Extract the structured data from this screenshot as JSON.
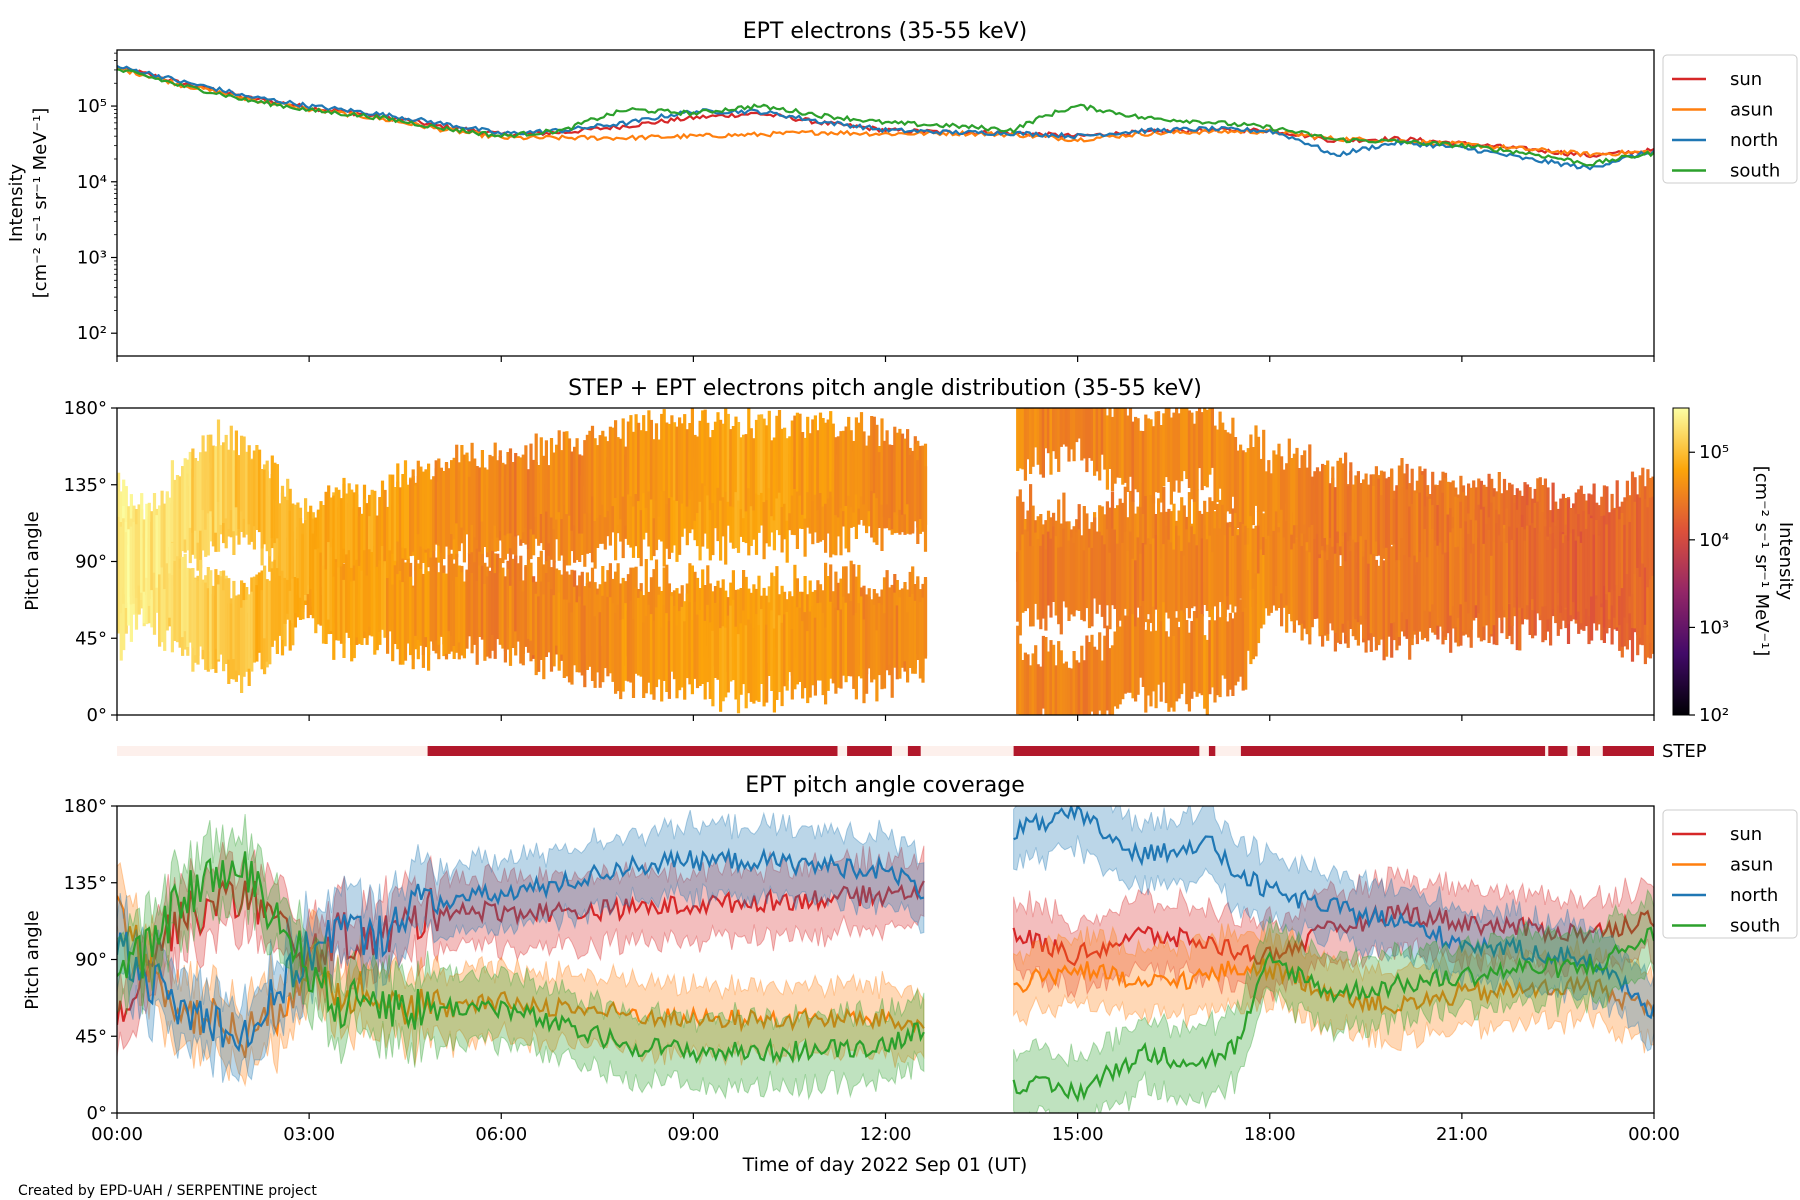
{
  "figure": {
    "footer": "Created by EPD-UAH / SERPENTINE project",
    "xlabel": "Time of day 2022 Sep 01 (UT)",
    "xticks": [
      "00:00",
      "03:00",
      "06:00",
      "09:00",
      "12:00",
      "15:00",
      "18:00",
      "21:00",
      "00:00"
    ]
  },
  "colors": {
    "sun": "#d62728",
    "asun": "#ff7f0e",
    "north": "#1f77b4",
    "south": "#2ca02c",
    "step_on": "#b2182b",
    "step_off": "#fdf0ec"
  },
  "chart_data": [
    {
      "type": "line",
      "title": "EPT electrons (35-55 keV)",
      "ylabel": "Intensity",
      "yunit": "[cm⁻² s⁻¹ sr⁻¹ MeV⁻¹]",
      "yscale": "log",
      "ylim": [
        50,
        550000
      ],
      "yticks": [
        "10²",
        "10³",
        "10⁴",
        "10⁵"
      ],
      "xlim_hours": [
        0,
        24
      ],
      "legend": "right",
      "x": [
        0,
        1,
        2,
        3,
        4,
        5,
        6,
        7,
        8,
        9,
        10,
        11,
        12,
        13,
        14,
        15,
        16,
        17,
        18,
        19,
        20,
        21,
        22,
        23,
        24
      ],
      "series": [
        {
          "name": "sun",
          "values": [
            320000,
            200000,
            130000,
            95000,
            75000,
            55000,
            42000,
            45000,
            55000,
            70000,
            80000,
            60000,
            48000,
            45000,
            44000,
            40000,
            45000,
            48000,
            48000,
            35000,
            37000,
            32000,
            27000,
            22000,
            26000
          ]
        },
        {
          "name": "asun",
          "values": [
            310000,
            190000,
            125000,
            90000,
            70000,
            50000,
            38000,
            38000,
            38000,
            40000,
            42000,
            45000,
            43000,
            44000,
            42000,
            36000,
            43000,
            46000,
            46000,
            37000,
            35000,
            31000,
            27000,
            23000,
            25000
          ]
        },
        {
          "name": "north",
          "values": [
            330000,
            210000,
            135000,
            100000,
            80000,
            60000,
            43000,
            48000,
            60000,
            85000,
            85000,
            62000,
            48000,
            45000,
            44000,
            40000,
            47000,
            50000,
            47000,
            22000,
            33000,
            28000,
            20000,
            15000,
            25000
          ]
        },
        {
          "name": "south",
          "values": [
            300000,
            185000,
            120000,
            88000,
            72000,
            52000,
            40000,
            48000,
            90000,
            80000,
            100000,
            75000,
            60000,
            55000,
            48000,
            100000,
            70000,
            62000,
            52000,
            36000,
            34000,
            30000,
            24000,
            17000,
            24000
          ]
        }
      ]
    },
    {
      "type": "heatmap",
      "title": "STEP + EPT electrons pitch angle distribution (35-55 keV)",
      "ylabel": "Pitch angle",
      "yticks": [
        "0°",
        "45°",
        "90°",
        "135°",
        "180°"
      ],
      "ylim": [
        0,
        180
      ],
      "colorbar_label": "Intensity",
      "colorbar_unit": "[cm⁻² s⁻¹ sr⁻¹ MeV⁻¹]",
      "colorbar_ticks": [
        "10²",
        "10³",
        "10⁴",
        "10⁵"
      ],
      "colorbar_range": [
        100,
        320000
      ],
      "data_gap_hours": [
        12.6,
        14.0
      ]
    },
    {
      "type": "table",
      "label": "STEP",
      "on_intervals_hours": [
        [
          4.85,
          11.25
        ],
        [
          11.4,
          12.1
        ],
        [
          12.35,
          12.55
        ],
        [
          14.0,
          16.9
        ],
        [
          17.05,
          17.15
        ],
        [
          17.55,
          22.3
        ],
        [
          22.35,
          22.65
        ],
        [
          22.8,
          23.0
        ],
        [
          23.2,
          24.0
        ]
      ]
    },
    {
      "type": "line",
      "title": "EPT pitch angle coverage",
      "ylabel": "Pitch angle",
      "yticks": [
        "0°",
        "45°",
        "90°",
        "135°",
        "180°"
      ],
      "ylim": [
        0,
        180
      ],
      "legend": "right",
      "band_width_deg": 20,
      "x": [
        0,
        0.5,
        1,
        1.5,
        2,
        2.5,
        3,
        3.5,
        4,
        4.5,
        5,
        6,
        7,
        8,
        9,
        10,
        11,
        12,
        12.6,
        14,
        15,
        16,
        17,
        17.5,
        18,
        19,
        20,
        21,
        22,
        23,
        24
      ],
      "series": [
        {
          "name": "sun",
          "values": [
            60,
            90,
            115,
            120,
            130,
            110,
            90,
            105,
            100,
            110,
            120,
            118,
            118,
            120,
            122,
            124,
            126,
            128,
            132,
            105,
            92,
            105,
            100,
            95,
            92,
            108,
            118,
            112,
            108,
            105,
            115
          ]
        },
        {
          "name": "asun",
          "values": [
            115,
            90,
            60,
            55,
            45,
            60,
            90,
            70,
            75,
            65,
            60,
            65,
            62,
            58,
            55,
            55,
            55,
            55,
            50,
            75,
            85,
            75,
            80,
            85,
            85,
            70,
            62,
            70,
            72,
            75,
            60
          ]
        },
        {
          "name": "north",
          "values": [
            100,
            80,
            60,
            55,
            45,
            70,
            95,
            110,
            100,
            120,
            125,
            128,
            135,
            145,
            148,
            148,
            145,
            143,
            130,
            165,
            175,
            150,
            160,
            140,
            130,
            120,
            112,
            100,
            95,
            90,
            60
          ]
        },
        {
          "name": "south",
          "values": [
            80,
            95,
            125,
            140,
            140,
            115,
            85,
            60,
            70,
            60,
            62,
            62,
            50,
            40,
            36,
            36,
            37,
            40,
            50,
            18,
            12,
            35,
            30,
            40,
            90,
            70,
            75,
            80,
            85,
            85,
            105
          ]
        }
      ]
    }
  ]
}
